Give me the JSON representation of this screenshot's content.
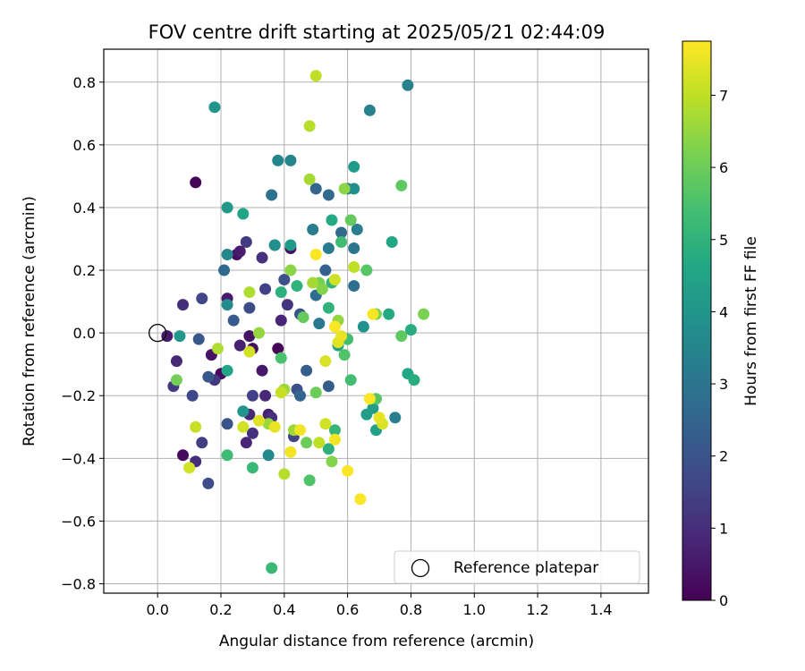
{
  "chart_data": {
    "type": "scatter",
    "title": "FOV centre drift starting at 2025/05/21 02:44:09",
    "xlabel": "Angular distance from reference (arcmin)",
    "ylabel": "Rotation from reference (arcmin)",
    "xlim": [
      -0.17,
      1.55
    ],
    "ylim": [
      -0.83,
      0.905
    ],
    "xticks": [
      0.0,
      0.2,
      0.4,
      0.6,
      0.8,
      1.0,
      1.2,
      1.4
    ],
    "xtick_labels": [
      "0.0",
      "0.2",
      "0.4",
      "0.6",
      "0.8",
      "1.0",
      "1.2",
      "1.4"
    ],
    "yticks": [
      -0.8,
      -0.6,
      -0.4,
      -0.2,
      0.0,
      0.2,
      0.4,
      0.6,
      0.8
    ],
    "ytick_labels": [
      "−0.8",
      "−0.6",
      "−0.4",
      "−0.2",
      "0.0",
      "0.2",
      "0.4",
      "0.6",
      "0.8"
    ],
    "grid": true,
    "legend": {
      "position": "lower-right",
      "entries": [
        "Reference platepar"
      ]
    },
    "reference_point": {
      "x": 0.0,
      "y": 0.0,
      "label": "Reference platepar"
    },
    "colorbar": {
      "label": "Hours from first FF file",
      "min": 0,
      "max": 7.75,
      "ticks": [
        0,
        1,
        2,
        3,
        4,
        5,
        6,
        7
      ],
      "tick_labels": [
        "0",
        "1",
        "2",
        "3",
        "4",
        "5",
        "6",
        "7"
      ],
      "colormap": "viridis"
    },
    "points": [
      {
        "x": 0.12,
        "y": 0.48,
        "h": 0.1
      },
      {
        "x": 0.38,
        "y": -0.05,
        "h": 0.1
      },
      {
        "x": 0.08,
        "y": -0.39,
        "h": 0.2
      },
      {
        "x": 0.2,
        "y": -0.13,
        "h": 0.2
      },
      {
        "x": 0.25,
        "y": 0.25,
        "h": 0.3
      },
      {
        "x": 0.42,
        "y": 0.27,
        "h": 0.3
      },
      {
        "x": 0.3,
        "y": -0.05,
        "h": 0.3
      },
      {
        "x": 0.29,
        "y": -0.01,
        "h": 0.4
      },
      {
        "x": 0.17,
        "y": -0.07,
        "h": 0.4
      },
      {
        "x": 0.03,
        "y": -0.01,
        "h": 0.5
      },
      {
        "x": 0.33,
        "y": -0.12,
        "h": 0.5
      },
      {
        "x": 0.26,
        "y": 0.26,
        "h": 0.6
      },
      {
        "x": 0.22,
        "y": 0.11,
        "h": 0.6
      },
      {
        "x": 0.26,
        "y": -0.04,
        "h": 0.7
      },
      {
        "x": 0.35,
        "y": -0.26,
        "h": 0.7
      },
      {
        "x": 0.28,
        "y": -0.35,
        "h": 0.8
      },
      {
        "x": 0.39,
        "y": 0.04,
        "h": 0.8
      },
      {
        "x": 0.06,
        "y": -0.09,
        "h": 0.9
      },
      {
        "x": 0.29,
        "y": -0.26,
        "h": 0.9
      },
      {
        "x": 0.34,
        "y": -0.2,
        "h": 0.9
      },
      {
        "x": 0.08,
        "y": 0.09,
        "h": 1.0
      },
      {
        "x": 0.12,
        "y": -0.41,
        "h": 1.0
      },
      {
        "x": 0.33,
        "y": 0.24,
        "h": 1.1
      },
      {
        "x": 0.36,
        "y": -0.27,
        "h": 1.1
      },
      {
        "x": 0.3,
        "y": -0.32,
        "h": 1.1
      },
      {
        "x": 0.18,
        "y": -0.15,
        "h": 1.2
      },
      {
        "x": 0.41,
        "y": 0.09,
        "h": 1.2
      },
      {
        "x": 0.28,
        "y": 0.29,
        "h": 1.3
      },
      {
        "x": 0.05,
        "y": -0.17,
        "h": 1.3
      },
      {
        "x": 0.14,
        "y": -0.35,
        "h": 1.4
      },
      {
        "x": 0.3,
        "y": -0.2,
        "h": 1.5
      },
      {
        "x": 0.34,
        "y": 0.14,
        "h": 1.5
      },
      {
        "x": 0.43,
        "y": -0.33,
        "h": 1.6
      },
      {
        "x": 0.14,
        "y": 0.11,
        "h": 1.6
      },
      {
        "x": 0.11,
        "y": -0.2,
        "h": 1.7
      },
      {
        "x": 0.16,
        "y": -0.48,
        "h": 1.8
      },
      {
        "x": 0.29,
        "y": 0.08,
        "h": 1.8
      },
      {
        "x": 0.44,
        "y": -0.18,
        "h": 1.9
      },
      {
        "x": 0.4,
        "y": 0.17,
        "h": 1.9
      },
      {
        "x": 0.22,
        "y": -0.29,
        "h": 2.0
      },
      {
        "x": 0.45,
        "y": 0.06,
        "h": 2.0
      },
      {
        "x": 0.13,
        "y": -0.02,
        "h": 2.1
      },
      {
        "x": 0.16,
        "y": -0.14,
        "h": 2.1
      },
      {
        "x": 0.24,
        "y": 0.04,
        "h": 2.2
      },
      {
        "x": 0.47,
        "y": -0.12,
        "h": 2.3
      },
      {
        "x": 0.54,
        "y": -0.17,
        "h": 2.3
      },
      {
        "x": 0.53,
        "y": 0.2,
        "h": 2.4
      },
      {
        "x": 0.37,
        "y": 0.28,
        "h": 2.4
      },
      {
        "x": 0.5,
        "y": 0.46,
        "h": 2.5
      },
      {
        "x": 0.45,
        "y": -0.2,
        "h": 2.5
      },
      {
        "x": 0.21,
        "y": 0.2,
        "h": 2.6
      },
      {
        "x": 0.54,
        "y": 0.44,
        "h": 2.7
      },
      {
        "x": 0.58,
        "y": 0.32,
        "h": 2.7
      },
      {
        "x": 0.62,
        "y": 0.15,
        "h": 2.8
      },
      {
        "x": 0.5,
        "y": 0.12,
        "h": 2.8
      },
      {
        "x": 0.36,
        "y": 0.44,
        "h": 2.9
      },
      {
        "x": 0.6,
        "y": 0.46,
        "h": 3.0
      },
      {
        "x": 0.62,
        "y": 0.27,
        "h": 3.0
      },
      {
        "x": 0.51,
        "y": 0.03,
        "h": 3.1
      },
      {
        "x": 0.49,
        "y": 0.33,
        "h": 3.2
      },
      {
        "x": 0.54,
        "y": 0.27,
        "h": 3.2
      },
      {
        "x": 0.63,
        "y": 0.33,
        "h": 3.3
      },
      {
        "x": 0.75,
        "y": -0.27,
        "h": 3.3
      },
      {
        "x": 0.79,
        "y": 0.79,
        "h": 3.4
      },
      {
        "x": 0.67,
        "y": 0.71,
        "h": 3.4
      },
      {
        "x": 0.38,
        "y": 0.55,
        "h": 3.5
      },
      {
        "x": 0.42,
        "y": 0.55,
        "h": 3.5
      },
      {
        "x": 0.22,
        "y": 0.25,
        "h": 3.6
      },
      {
        "x": 0.35,
        "y": -0.39,
        "h": 3.6
      },
      {
        "x": 0.22,
        "y": 0.09,
        "h": 3.7
      },
      {
        "x": 0.37,
        "y": 0.28,
        "h": 3.8
      },
      {
        "x": 0.62,
        "y": 0.46,
        "h": 3.8
      },
      {
        "x": 0.65,
        "y": 0.02,
        "h": 3.9
      },
      {
        "x": 0.27,
        "y": -0.25,
        "h": 4.0
      },
      {
        "x": 0.18,
        "y": 0.72,
        "h": 4.0
      },
      {
        "x": 0.22,
        "y": 0.4,
        "h": 4.1
      },
      {
        "x": 0.07,
        "y": -0.01,
        "h": 4.1
      },
      {
        "x": 0.42,
        "y": 0.28,
        "h": 4.2
      },
      {
        "x": 0.62,
        "y": 0.53,
        "h": 4.2
      },
      {
        "x": 0.68,
        "y": -0.24,
        "h": 4.3
      },
      {
        "x": 0.66,
        "y": -0.26,
        "h": 4.3
      },
      {
        "x": 0.57,
        "y": -0.04,
        "h": 4.4
      },
      {
        "x": 0.69,
        "y": -0.31,
        "h": 4.4
      },
      {
        "x": 0.22,
        "y": -0.12,
        "h": 4.5
      },
      {
        "x": 0.27,
        "y": 0.38,
        "h": 4.5
      },
      {
        "x": 0.79,
        "y": -0.13,
        "h": 4.6
      },
      {
        "x": 0.74,
        "y": 0.29,
        "h": 4.6
      },
      {
        "x": 0.55,
        "y": 0.36,
        "h": 4.7
      },
      {
        "x": 0.73,
        "y": 0.06,
        "h": 4.7
      },
      {
        "x": 0.8,
        "y": 0.01,
        "h": 4.8
      },
      {
        "x": 0.81,
        "y": -0.15,
        "h": 4.8
      },
      {
        "x": 0.54,
        "y": -0.37,
        "h": 4.9
      },
      {
        "x": 0.39,
        "y": 0.13,
        "h": 4.9
      },
      {
        "x": 0.44,
        "y": 0.15,
        "h": 5.0
      },
      {
        "x": 0.54,
        "y": 0.08,
        "h": 5.0
      },
      {
        "x": 0.55,
        "y": 0.16,
        "h": 5.1
      },
      {
        "x": 0.56,
        "y": -0.31,
        "h": 5.1
      },
      {
        "x": 0.3,
        "y": -0.43,
        "h": 5.2
      },
      {
        "x": 0.36,
        "y": -0.75,
        "h": 5.2
      },
      {
        "x": 0.22,
        "y": -0.39,
        "h": 5.3
      },
      {
        "x": 0.58,
        "y": 0.29,
        "h": 5.3
      },
      {
        "x": 0.6,
        "y": -0.02,
        "h": 5.4
      },
      {
        "x": 0.61,
        "y": -0.15,
        "h": 5.4
      },
      {
        "x": 0.39,
        "y": -0.08,
        "h": 5.5
      },
      {
        "x": 0.48,
        "y": -0.47,
        "h": 5.6
      },
      {
        "x": 0.59,
        "y": -0.07,
        "h": 5.6
      },
      {
        "x": 0.66,
        "y": 0.2,
        "h": 5.7
      },
      {
        "x": 0.69,
        "y": -0.21,
        "h": 5.7
      },
      {
        "x": 0.77,
        "y": -0.01,
        "h": 5.8
      },
      {
        "x": 0.77,
        "y": 0.47,
        "h": 5.8
      },
      {
        "x": 0.61,
        "y": 0.36,
        "h": 5.9
      },
      {
        "x": 0.46,
        "y": 0.05,
        "h": 5.9
      },
      {
        "x": 0.5,
        "y": -0.19,
        "h": 6.0
      },
      {
        "x": 0.47,
        "y": -0.35,
        "h": 6.0
      },
      {
        "x": 0.06,
        "y": -0.15,
        "h": 6.1
      },
      {
        "x": 0.51,
        "y": 0.16,
        "h": 6.1
      },
      {
        "x": 0.69,
        "y": 0.06,
        "h": 6.2
      },
      {
        "x": 0.84,
        "y": 0.06,
        "h": 6.2
      },
      {
        "x": 0.52,
        "y": 0.14,
        "h": 6.3
      },
      {
        "x": 0.55,
        "y": -0.41,
        "h": 6.3
      },
      {
        "x": 0.59,
        "y": 0.46,
        "h": 6.4
      },
      {
        "x": 0.42,
        "y": 0.2,
        "h": 6.4
      },
      {
        "x": 0.32,
        "y": 0.0,
        "h": 6.5
      },
      {
        "x": 0.57,
        "y": 0.04,
        "h": 6.5
      },
      {
        "x": 0.4,
        "y": -0.18,
        "h": 6.6
      },
      {
        "x": 0.43,
        "y": -0.31,
        "h": 6.6
      },
      {
        "x": 0.35,
        "y": -0.29,
        "h": 6.6
      },
      {
        "x": 0.48,
        "y": 0.49,
        "h": 6.7
      },
      {
        "x": 0.49,
        "y": 0.16,
        "h": 6.7
      },
      {
        "x": 0.29,
        "y": 0.13,
        "h": 6.8
      },
      {
        "x": 0.19,
        "y": -0.05,
        "h": 6.8
      },
      {
        "x": 0.4,
        "y": -0.45,
        "h": 6.9
      },
      {
        "x": 0.48,
        "y": 0.66,
        "h": 6.9
      },
      {
        "x": 0.5,
        "y": 0.82,
        "h": 7.0
      },
      {
        "x": 0.51,
        "y": -0.35,
        "h": 7.0
      },
      {
        "x": 0.62,
        "y": 0.21,
        "h": 7.0
      },
      {
        "x": 0.39,
        "y": -0.19,
        "h": 7.1
      },
      {
        "x": 0.12,
        "y": -0.3,
        "h": 7.1
      },
      {
        "x": 0.1,
        "y": -0.43,
        "h": 7.2
      },
      {
        "x": 0.27,
        "y": -0.3,
        "h": 7.2
      },
      {
        "x": 0.29,
        "y": -0.06,
        "h": 7.2
      },
      {
        "x": 0.53,
        "y": -0.29,
        "h": 7.2
      },
      {
        "x": 0.56,
        "y": 0.17,
        "h": 7.2
      },
      {
        "x": 0.53,
        "y": -0.09,
        "h": 7.3
      },
      {
        "x": 0.71,
        "y": -0.29,
        "h": 7.3
      },
      {
        "x": 0.32,
        "y": -0.28,
        "h": 7.4
      },
      {
        "x": 0.57,
        "y": -0.03,
        "h": 7.4
      },
      {
        "x": 0.7,
        "y": -0.27,
        "h": 7.5
      },
      {
        "x": 0.58,
        "y": -0.01,
        "h": 7.5
      },
      {
        "x": 0.37,
        "y": -0.3,
        "h": 7.5
      },
      {
        "x": 0.45,
        "y": -0.31,
        "h": 7.6
      },
      {
        "x": 0.42,
        "y": -0.38,
        "h": 7.6
      },
      {
        "x": 0.56,
        "y": -0.34,
        "h": 7.6
      },
      {
        "x": 0.6,
        "y": -0.44,
        "h": 7.7
      },
      {
        "x": 0.64,
        "y": -0.53,
        "h": 7.7
      },
      {
        "x": 0.56,
        "y": 0.02,
        "h": 7.7
      },
      {
        "x": 0.68,
        "y": 0.06,
        "h": 7.7
      },
      {
        "x": 0.67,
        "y": -0.21,
        "h": 7.7
      },
      {
        "x": 0.5,
        "y": 0.25,
        "h": 7.7
      }
    ]
  }
}
